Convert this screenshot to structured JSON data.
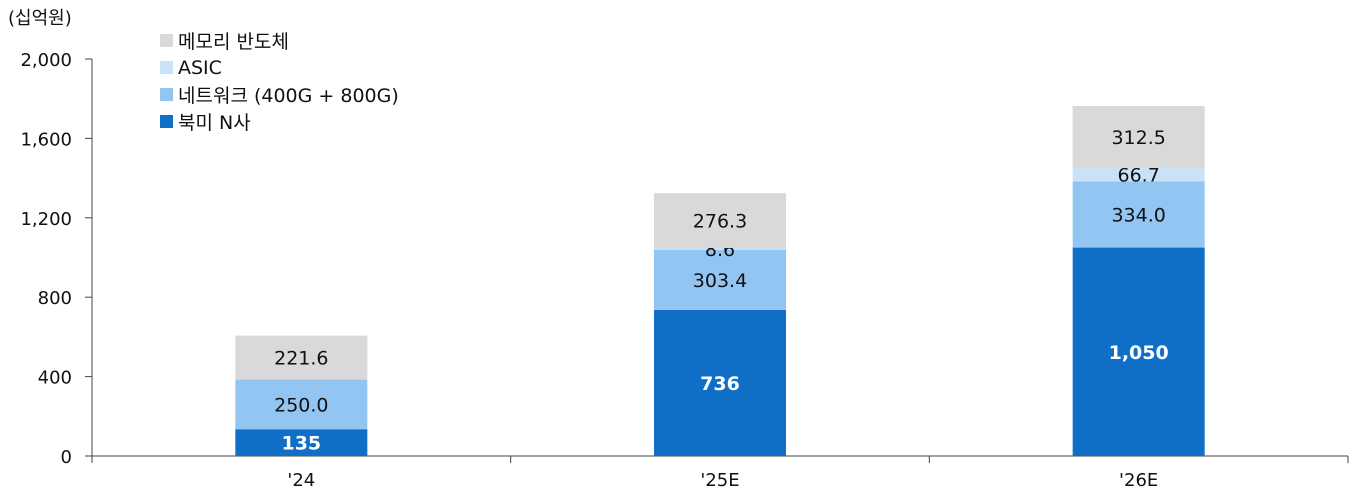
{
  "chart_data": {
    "type": "bar",
    "stacked": true,
    "unit_label": "(십억원)",
    "categories": [
      "'24",
      "'25E",
      "'26E"
    ],
    "ylim": [
      0,
      2000
    ],
    "yticks": [
      0,
      400,
      800,
      1200,
      1600,
      2000
    ],
    "ytick_labels": [
      "0",
      "400",
      "800",
      "1,200",
      "1,600",
      "2,000"
    ],
    "series": [
      {
        "name": "북미 N사",
        "color": "#0f6fc6",
        "values": [
          135,
          736,
          1050
        ],
        "labels": [
          "135",
          "736",
          "1,050"
        ],
        "label_color": "#ffffff",
        "label_bold": true
      },
      {
        "name": "네트워크 (400G + 800G)",
        "color": "#93c5f2",
        "values": [
          250.0,
          303.4,
          334.0
        ],
        "labels": [
          "250.0",
          "303.4",
          "334.0"
        ],
        "label_color": "#111111",
        "label_bold": false
      },
      {
        "name": "ASIC",
        "color": "#c9e2f8",
        "values": [
          0,
          8.6,
          66.7
        ],
        "labels": [
          "",
          "8.6",
          "66.7"
        ],
        "label_color": "#111111",
        "label_bold": false
      },
      {
        "name": "메모리 반도체",
        "color": "#d9d9d9",
        "values": [
          221.6,
          276.3,
          312.5
        ],
        "labels": [
          "221.6",
          "276.3",
          "312.5"
        ],
        "label_color": "#111111",
        "label_bold": false
      }
    ],
    "legend_position": "top-left",
    "grid": false
  }
}
